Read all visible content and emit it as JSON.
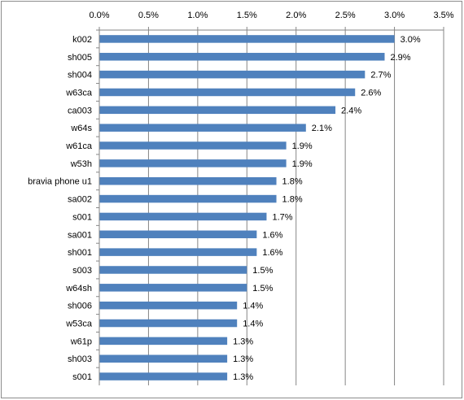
{
  "chart_data": {
    "type": "bar",
    "orientation": "horizontal",
    "categories": [
      "k002",
      "sh005",
      "sh004",
      "w63ca",
      "ca003",
      "w64s",
      "w61ca",
      "w53h",
      "bravia phone u1",
      "sa002",
      "s001",
      "sa001",
      "sh001",
      "s003",
      "w64sh",
      "sh006",
      "w53ca",
      "w61p",
      "sh003",
      "s001"
    ],
    "values": [
      3.0,
      2.9,
      2.7,
      2.6,
      2.4,
      2.1,
      1.9,
      1.9,
      1.8,
      1.8,
      1.7,
      1.6,
      1.6,
      1.5,
      1.5,
      1.4,
      1.4,
      1.3,
      1.3,
      1.3
    ],
    "value_labels": [
      "3.0%",
      "2.9%",
      "2.7%",
      "2.6%",
      "2.4%",
      "2.1%",
      "1.9%",
      "1.9%",
      "1.8%",
      "1.8%",
      "1.7%",
      "1.6%",
      "1.6%",
      "1.5%",
      "1.5%",
      "1.4%",
      "1.4%",
      "1.3%",
      "1.3%",
      "1.3%"
    ],
    "xlim": [
      0,
      3.5
    ],
    "ticks": [
      0,
      0.5,
      1.0,
      1.5,
      2.0,
      2.5,
      3.0,
      3.5
    ],
    "tick_labels": [
      "0.0%",
      "0.5%",
      "1.0%",
      "1.5%",
      "2.0%",
      "2.5%",
      "3.0%",
      "3.5%"
    ],
    "axis_position": "top",
    "grid": true,
    "legend": false,
    "bar_color": "#4f81bd",
    "grid_color": "#868686"
  }
}
